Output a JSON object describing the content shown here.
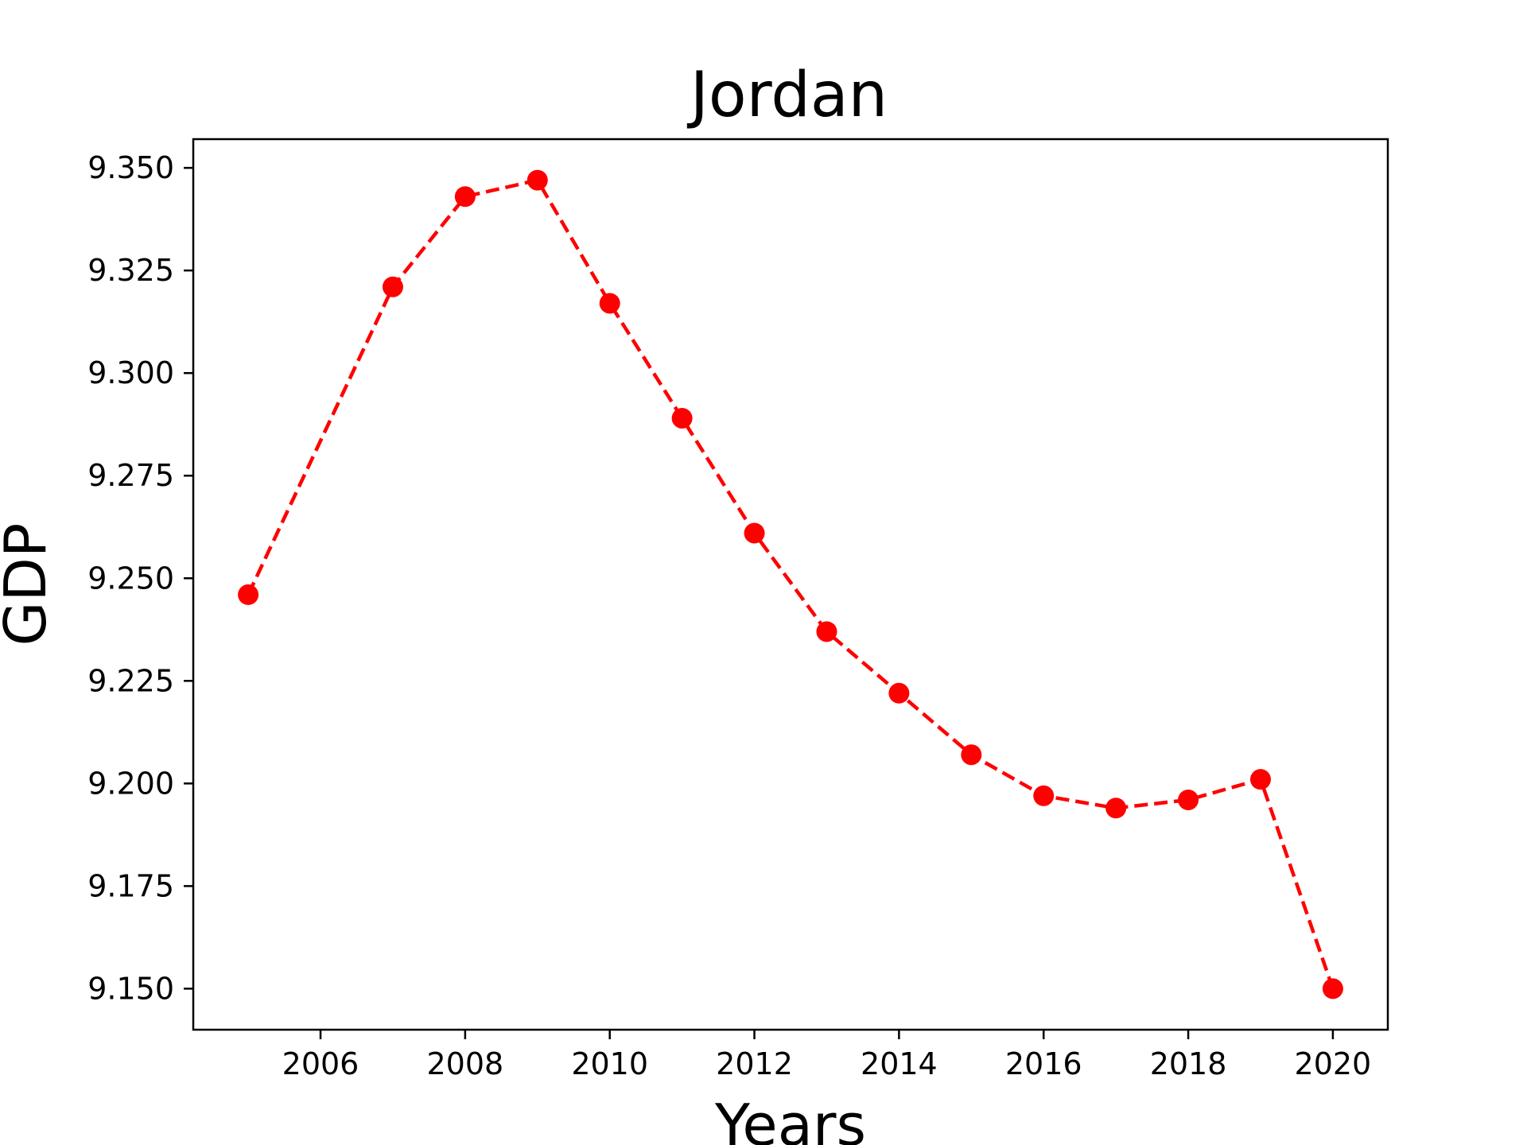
{
  "chart_data": {
    "type": "line",
    "title": "Jordan",
    "xlabel": "Years",
    "ylabel": "GDP",
    "x": [
      2005,
      2007,
      2008,
      2009,
      2010,
      2011,
      2012,
      2013,
      2014,
      2015,
      2016,
      2017,
      2018,
      2019,
      2020
    ],
    "series": [
      {
        "values": [
          9.246,
          9.321,
          9.343,
          9.347,
          9.317,
          9.289,
          9.261,
          9.237,
          9.222,
          9.207,
          9.197,
          9.194,
          9.196,
          9.201,
          9.15
        ],
        "color": "#ff0000",
        "line_style": "dashed",
        "marker": "circle"
      }
    ],
    "xlim": [
      2004.24,
      2020.76
    ],
    "ylim": [
      9.14,
      9.357
    ],
    "xticks": [
      "2006",
      "2008",
      "2010",
      "2012",
      "2014",
      "2016",
      "2018",
      "2020"
    ],
    "yticks": [
      "9.150",
      "9.175",
      "9.200",
      "9.225",
      "9.250",
      "9.275",
      "9.300",
      "9.325",
      "9.350"
    ],
    "grid": false,
    "legend": "none"
  }
}
